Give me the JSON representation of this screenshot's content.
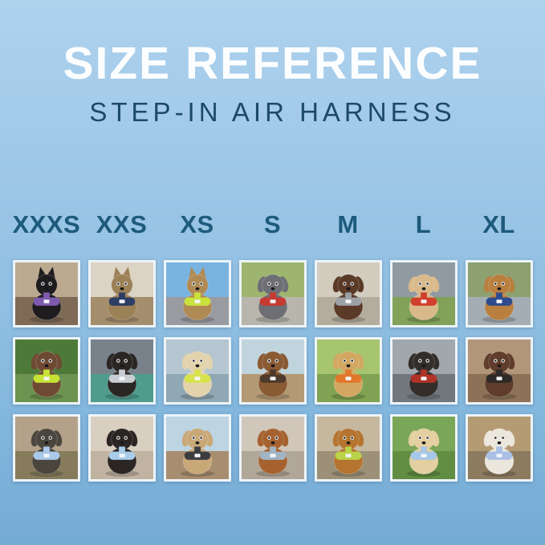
{
  "poster": {
    "background_top": "#aed2ee",
    "background_bottom": "#74abd5"
  },
  "header": {
    "title": "SIZE REFERENCE",
    "title_color": "#fcfdfe",
    "subtitle": "STEP-IN AIR HARNESS",
    "subtitle_color": "#1c4a66"
  },
  "sizes": {
    "labels": [
      "XXXS",
      "XXS",
      "XS",
      "S",
      "M",
      "L",
      "XL"
    ],
    "label_color": "#1d5a7c"
  },
  "grid": {
    "tile_border_color": "#edf4f9",
    "rows": [
      {
        "photos": [
          {
            "size": "XXXS",
            "animal": "cat",
            "description": "Black kitten in a purple harness indoors",
            "fur_color": "#1e1c1e",
            "harness_color": "#7e5bb0",
            "bg_top": "#bba990",
            "bg_bottom": "#7e6a55"
          },
          {
            "size": "XXS",
            "animal": "cat",
            "description": "Tabby cat in a navy harness by a window",
            "fur_color": "#9c8157",
            "harness_color": "#2e3d63",
            "bg_top": "#dbd3c4",
            "bg_bottom": "#a58e6d"
          },
          {
            "size": "XS",
            "animal": "cat",
            "description": "Bengal cat in a neon green harness in a car",
            "fur_color": "#b08a55",
            "harness_color": "#c9e23c",
            "bg_top": "#79b4e0",
            "bg_bottom": "#9a9ba0"
          },
          {
            "size": "S",
            "animal": "dog",
            "description": "Grey French Bulldog in a red harness on a sidewalk",
            "fur_color": "#6e6f74",
            "harness_color": "#c63a30",
            "bg_top": "#9eb56f",
            "bg_bottom": "#b8b6ac"
          },
          {
            "size": "M",
            "animal": "dog",
            "description": "Chocolate spaniel in a grey harness on pavement",
            "fur_color": "#5b3a28",
            "harness_color": "#9ba1a7",
            "bg_top": "#d3cdc0",
            "bg_bottom": "#b4ad9e"
          },
          {
            "size": "L",
            "animal": "dog",
            "description": "Shiba Inu with a red ball wearing a red harness in a field",
            "fur_color": "#d9b98a",
            "harness_color": "#d0402c",
            "bg_top": "#8f9aa3",
            "bg_bottom": "#82a159"
          },
          {
            "size": "XL",
            "animal": "dog",
            "description": "Golden Retriever in a navy blue harness on a flower-lined path",
            "fur_color": "#b97f3f",
            "harness_color": "#2e4b8f",
            "bg_top": "#8da06f",
            "bg_bottom": "#a3adb3"
          }
        ]
      },
      {
        "photos": [
          {
            "size": "XXXS",
            "animal": "dog",
            "description": "Long-haired Dachshund puppy in a lime green harness in a garden",
            "fur_color": "#6f4a33",
            "harness_color": "#c6e335",
            "bg_top": "#4e7a39",
            "bg_bottom": "#6d9350"
          },
          {
            "size": "XXS",
            "animal": "dog",
            "description": "Black Pug puppy in a light grey harness on a teal blanket",
            "fur_color": "#2a2624",
            "harness_color": "#c9ced4",
            "bg_top": "#79828b",
            "bg_bottom": "#4f9c8d"
          },
          {
            "size": "XS",
            "animal": "dog",
            "description": "Cream long-haired Dachshund in a lime harness on a boat",
            "fur_color": "#e3d3ac",
            "harness_color": "#d8e24c",
            "bg_top": "#b6c6d0",
            "bg_bottom": "#90a7b4"
          },
          {
            "size": "S",
            "animal": "dog",
            "description": "Dachshund in a dark brown harness sitting on a dock by the water",
            "fur_color": "#8a5a33",
            "harness_color": "#4c3b2d",
            "bg_top": "#c0d4de",
            "bg_bottom": "#b39a74"
          },
          {
            "size": "M",
            "animal": "dog",
            "description": "Golden Retriever puppy in an orange harness on a lawn",
            "fur_color": "#d3a761",
            "harness_color": "#e2772c",
            "bg_top": "#a7c56e",
            "bg_bottom": "#7fa352"
          },
          {
            "size": "L",
            "animal": "dog",
            "description": "Black-and-tan dog in a red and black harness inside a metal tunnel",
            "fur_color": "#332e2a",
            "harness_color": "#b03328",
            "bg_top": "#a0a7ad",
            "bg_bottom": "#70777d"
          },
          {
            "size": "XL",
            "animal": "dog",
            "description": "Brown-and-white dog in a black harness on a wooden deck",
            "fur_color": "#5f3c2b",
            "harness_color": "#2e2a28",
            "bg_top": "#b2967a",
            "bg_bottom": "#8d7257"
          }
        ]
      },
      {
        "photos": [
          {
            "size": "XXXS",
            "animal": "dog",
            "description": "Yorkshire Terrier puppy in a light blue harness on a sunny path",
            "fur_color": "#4b463d",
            "harness_color": "#a9c9e9",
            "bg_top": "#b3a289",
            "bg_bottom": "#867c5c"
          },
          {
            "size": "XXS",
            "animal": "dog",
            "description": "Black-and-tan Dachshund in a light blue harness on a cream seat",
            "fur_color": "#2b2624",
            "harness_color": "#a9cce9",
            "bg_top": "#d9cfc1",
            "bg_bottom": "#c0b3a1"
          },
          {
            "size": "XS",
            "animal": "dog",
            "description": "Apricot Poodle puppy in a charcoal harness on a boardwalk by the sea",
            "fur_color": "#c9a878",
            "harness_color": "#3b3d41",
            "bg_top": "#bdd4e2",
            "bg_bottom": "#a88e70"
          },
          {
            "size": "S",
            "animal": "dog",
            "description": "Red Dachshund in a grey harness on concrete",
            "fur_color": "#a5622f",
            "harness_color": "#a0b4c4",
            "bg_top": "#d0c6b9",
            "bg_bottom": "#b1a799"
          },
          {
            "size": "M",
            "animal": "dog",
            "description": "Red Goldendoodle in a lime green harness on a sidewalk",
            "fur_color": "#b5742f",
            "harness_color": "#bad247",
            "bg_top": "#c5b89f",
            "bg_bottom": "#9c9178"
          },
          {
            "size": "L",
            "animal": "dog",
            "description": "Cream Golden Retriever puppy in a light blue harness on grass",
            "fur_color": "#e3cf9f",
            "harness_color": "#a6c7e7",
            "bg_top": "#7aa657",
            "bg_bottom": "#618e43"
          },
          {
            "size": "XL",
            "animal": "dog",
            "description": "White dog with upright ears in a periwinkle harness on a city street",
            "fur_color": "#ece7dd",
            "harness_color": "#aabfe5",
            "bg_top": "#b59b73",
            "bg_bottom": "#8d7b5f"
          }
        ]
      }
    ]
  }
}
